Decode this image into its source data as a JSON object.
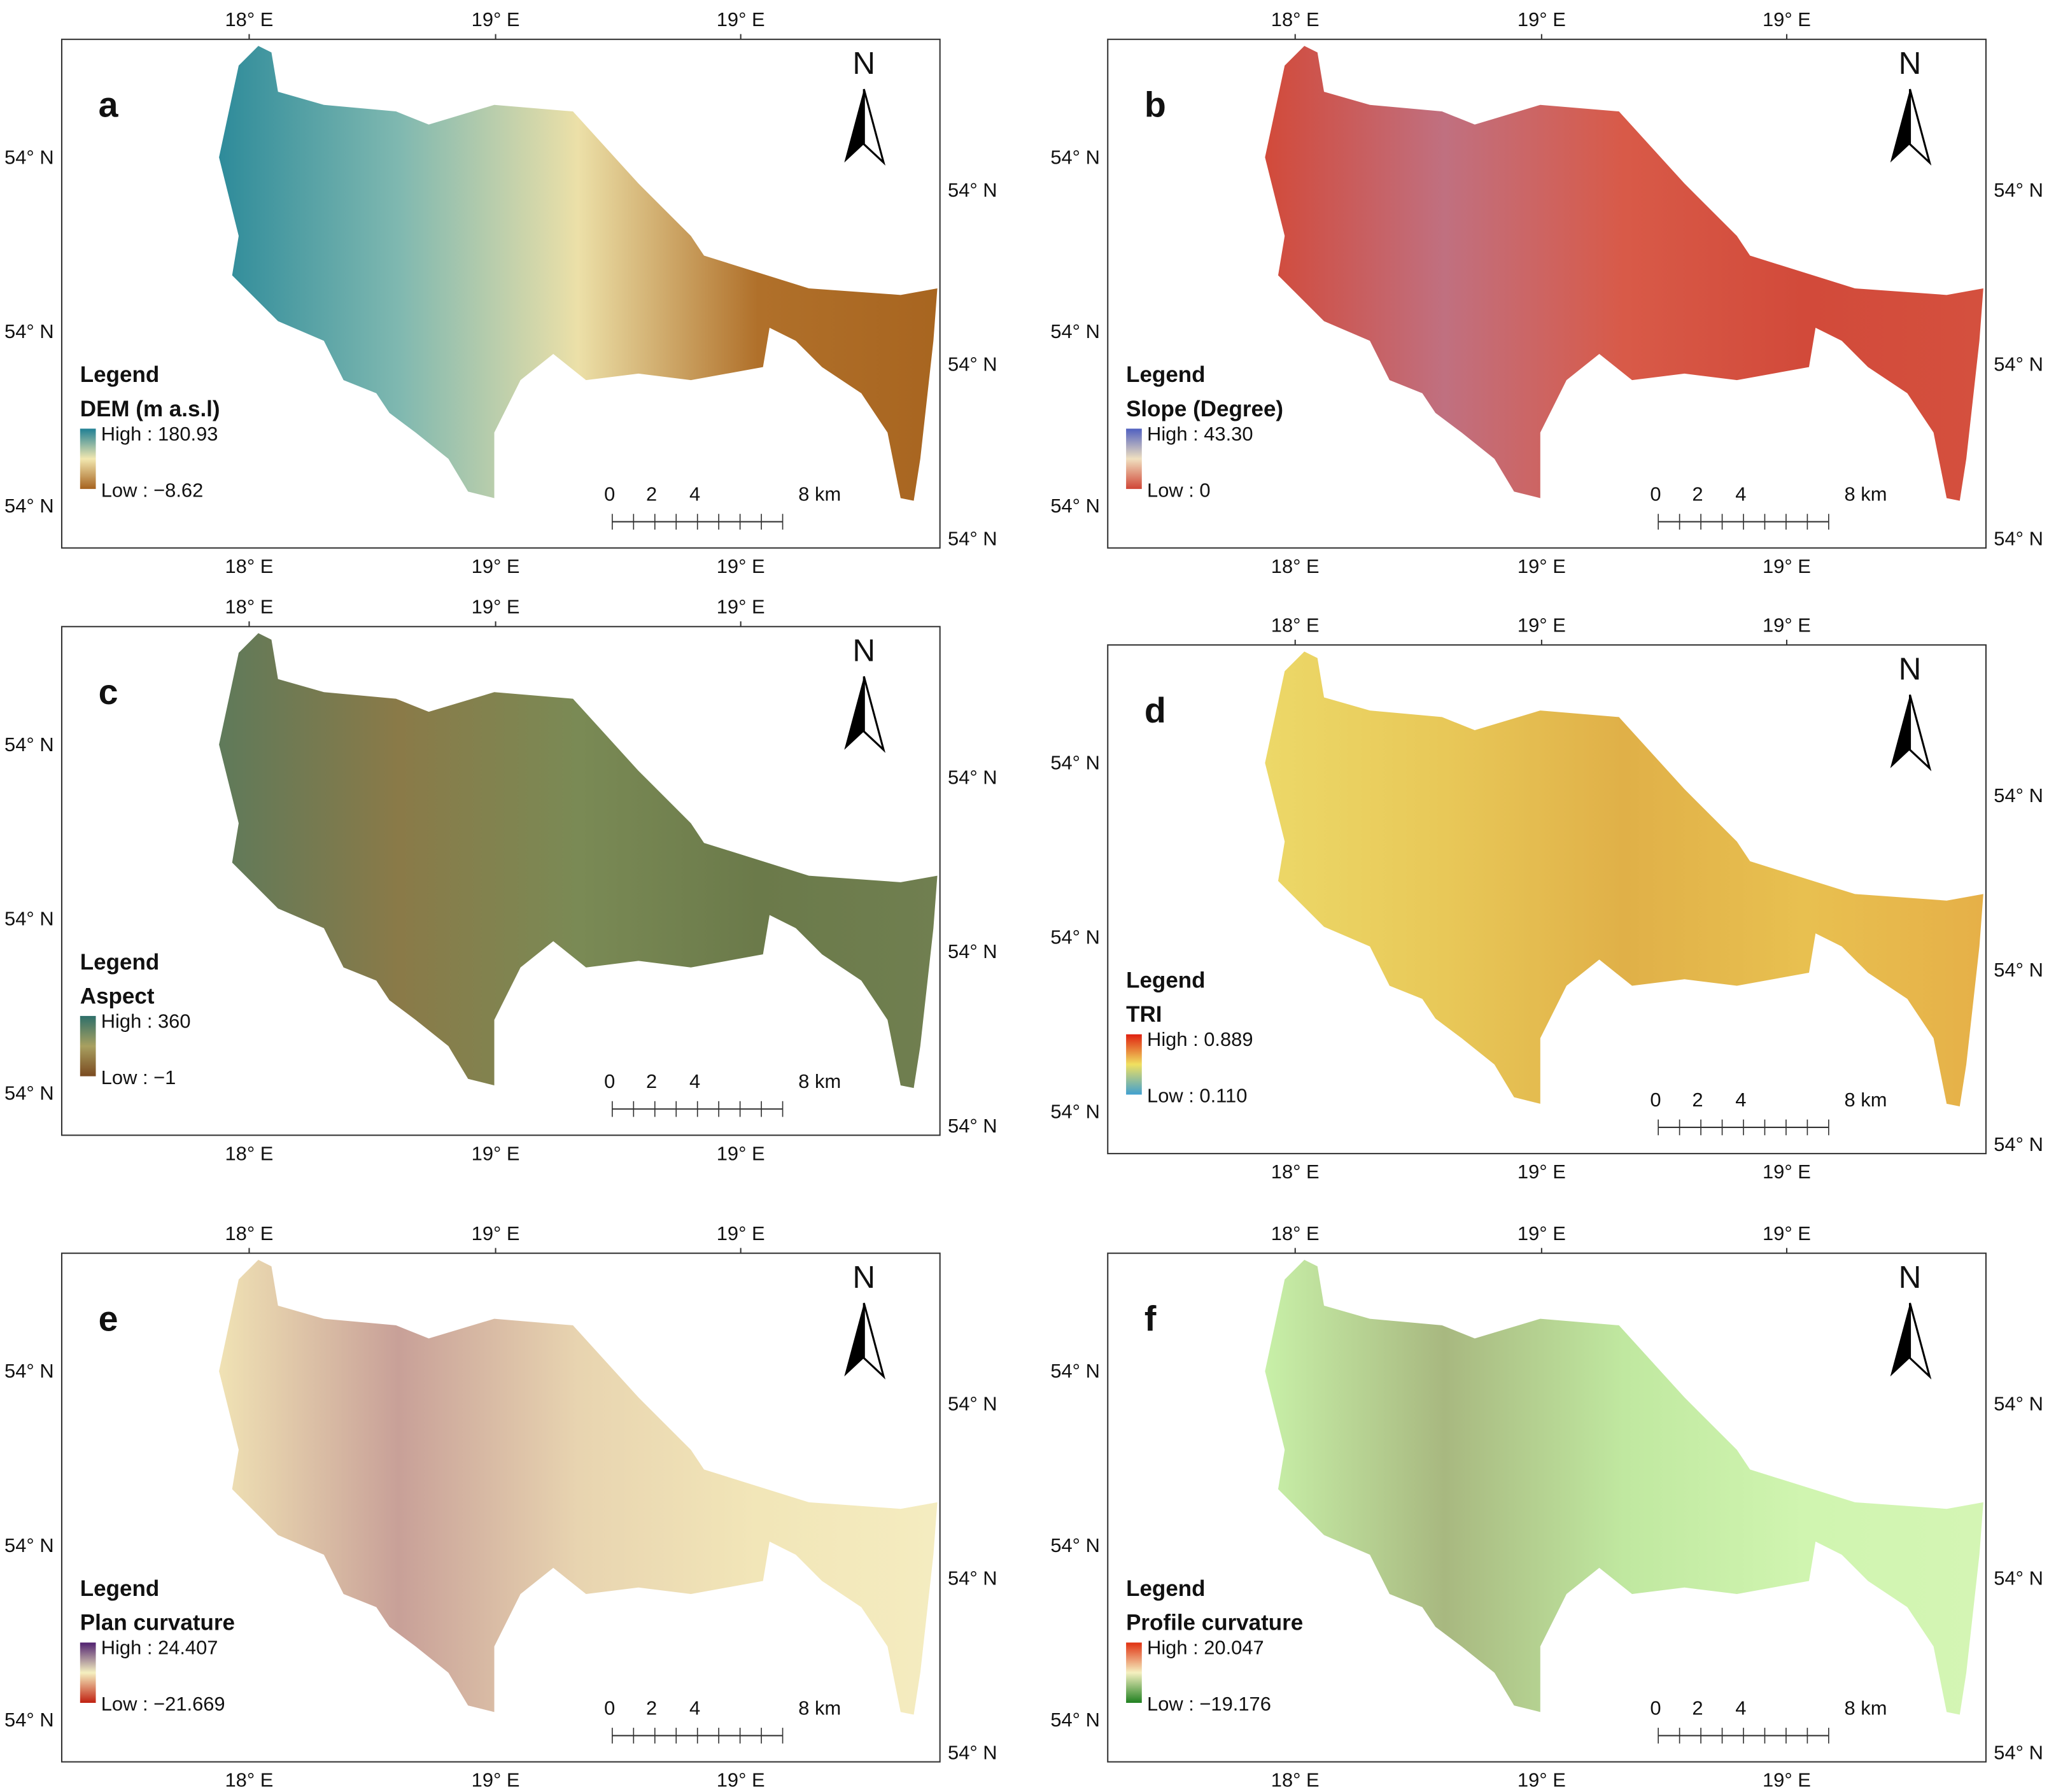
{
  "figure": {
    "coordinates": {
      "lon": [
        "18° E",
        "19° E",
        "19° E"
      ],
      "lat": "54° N"
    },
    "north": "N",
    "legend_heading": "Legend",
    "scale_labels": [
      "0",
      "2",
      "4",
      "8 km"
    ],
    "panels": [
      {
        "label": "a",
        "legend_title": "DEM (m a.s.l)",
        "high": "High : 180.93",
        "low": "Low : −8.62",
        "ramp": [
          "#1f7f94",
          "#f2e8b0",
          "#a6621e"
        ],
        "map_colors": [
          "#2e8b9a",
          "#7fb8b0",
          "#ece0a8",
          "#b0702a",
          "#a86520"
        ]
      },
      {
        "label": "b",
        "legend_title": "Slope (Degree)",
        "high": "High : 43.30",
        "low": "Low : 0",
        "ramp": [
          "#5060c0",
          "#f0e0c0",
          "#d04535"
        ],
        "map_colors": [
          "#d24a3a",
          "#c07080",
          "#d85a48",
          "#d24a3a",
          "#d4503e"
        ]
      },
      {
        "label": "c",
        "legend_title": "Aspect",
        "high": "High : 360",
        "low": "Low : −1",
        "ramp": [
          "#2e6f6a",
          "#a8a060",
          "#7a4a20"
        ],
        "map_colors": [
          "#5f7a5a",
          "#8a7a48",
          "#7a8a55",
          "#6b7a4a",
          "#707f50"
        ]
      },
      {
        "label": "d",
        "legend_title": "TRI",
        "high": "High : 0.889",
        "low": "Low : 0.110",
        "ramp": [
          "#e02010",
          "#f0e060",
          "#40a0d0"
        ],
        "map_colors": [
          "#ecd868",
          "#e8c858",
          "#e0b048",
          "#e8c050",
          "#e6b048"
        ]
      },
      {
        "label": "e",
        "legend_title": "Plan curvature",
        "high": "High : 24.407",
        "low": "Low : −21.669",
        "ramp": [
          "#502070",
          "#f5f0c0",
          "#c02010"
        ],
        "map_colors": [
          "#f0e2b4",
          "#c8a098",
          "#e8d4b0",
          "#f2e6b8",
          "#f4ecc0"
        ]
      },
      {
        "label": "f",
        "legend_title": "Profile curvature",
        "high": "High : 20.047",
        "low": "Low : −19.176",
        "ramp": [
          "#e03010",
          "#f5f0c0",
          "#208020"
        ],
        "map_colors": [
          "#c8f0a8",
          "#a8b880",
          "#c0e8a0",
          "#d0f5b0",
          "#d4f5b4"
        ]
      }
    ]
  }
}
